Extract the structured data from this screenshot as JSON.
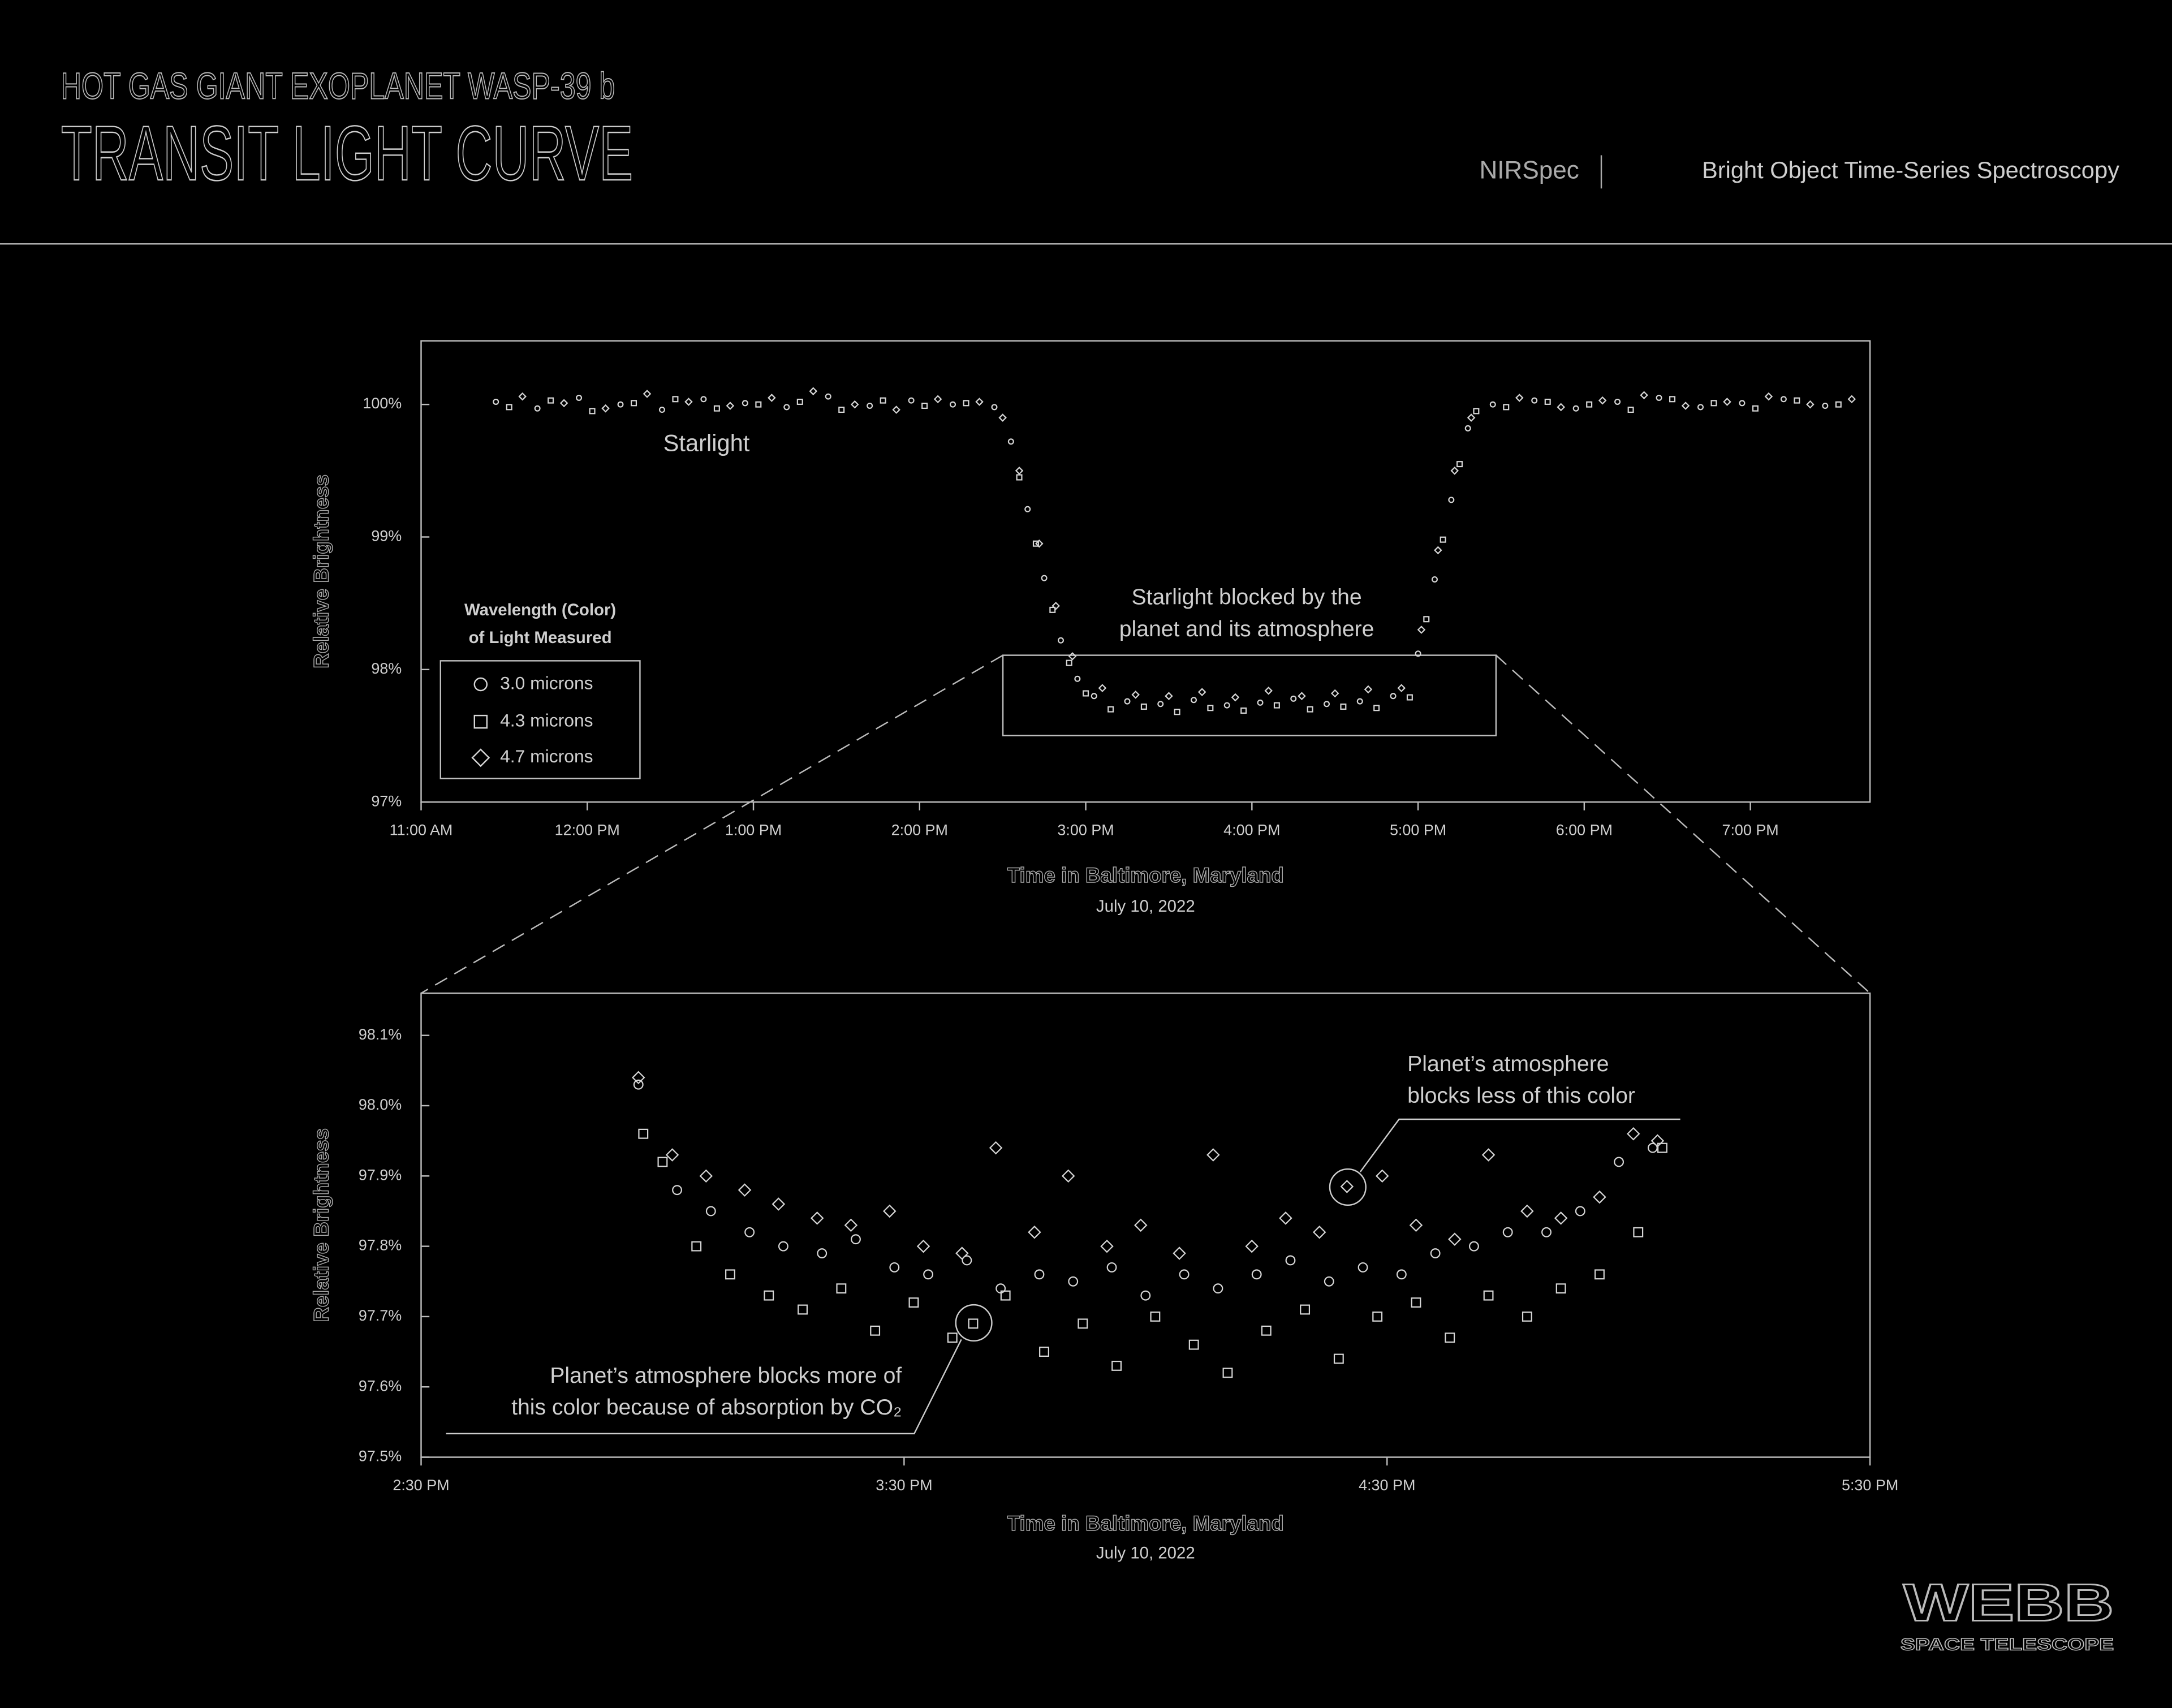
{
  "header": {
    "subtitle": "HOT GAS GIANT EXOPLANET WASP-39 b",
    "title": "TRANSIT LIGHT CURVE",
    "instrument": "NIRSpec",
    "mode": "Bright Object Time-Series Spectroscopy"
  },
  "logo": {
    "name": "WEBB",
    "tagline": "SPACE TELESCOPE"
  },
  "chart_data": [
    {
      "type": "scatter",
      "x_label": "Time in Baltimore, Maryland",
      "x_sublabel": "July 10, 2022",
      "y_label": "Relative Brightness",
      "xlim": [
        11,
        19.72
      ],
      "ylim": [
        97,
        100.48
      ],
      "xticks": [
        {
          "value": 11,
          "label": "11:00 AM"
        },
        {
          "value": 12,
          "label": "12:00 PM"
        },
        {
          "value": 13,
          "label": "1:00 PM"
        },
        {
          "value": 14,
          "label": "2:00 PM"
        },
        {
          "value": 15,
          "label": "3:00 PM"
        },
        {
          "value": 16,
          "label": "4:00 PM"
        },
        {
          "value": 17,
          "label": "5:00 PM"
        },
        {
          "value": 18,
          "label": "6:00 PM"
        },
        {
          "value": 19,
          "label": "7:00 PM"
        }
      ],
      "yticks": [
        {
          "value": 97,
          "label": "97%"
        },
        {
          "value": 98,
          "label": "98%"
        },
        {
          "value": 99,
          "label": "99%"
        },
        {
          "value": 100,
          "label": "100%"
        }
      ],
      "legend_title": [
        "Wavelength (Color)",
        "of Light Measured"
      ],
      "annotations": [
        {
          "lines": [
            "Starlight"
          ]
        },
        {
          "lines": [
            "Starlight blocked by the",
            "planet and its atmosphere"
          ]
        }
      ],
      "series": [
        {
          "name": "3.0 microns",
          "marker": "circle",
          "color": "#d6d6d6",
          "x": [
            11.45,
            11.7,
            11.95,
            12.2,
            12.45,
            12.7,
            12.95,
            13.2,
            13.45,
            13.7,
            13.95,
            14.2,
            14.45,
            14.55,
            14.65,
            14.75,
            14.85,
            14.95,
            15.05,
            15.25,
            15.45,
            15.65,
            15.85,
            16.05,
            16.25,
            16.45,
            16.65,
            16.85,
            17.0,
            17.1,
            17.2,
            17.3,
            17.45,
            17.7,
            17.95,
            18.2,
            18.45,
            18.7,
            18.95,
            19.2,
            19.45
          ],
          "values": [
            100.02,
            99.97,
            100.05,
            100.0,
            99.96,
            100.04,
            100.01,
            99.98,
            100.06,
            99.99,
            100.03,
            100.0,
            99.98,
            99.72,
            99.21,
            98.69,
            98.22,
            97.93,
            97.8,
            97.76,
            97.74,
            97.77,
            97.73,
            97.75,
            97.78,
            97.74,
            97.76,
            97.8,
            98.12,
            98.68,
            99.28,
            99.82,
            100.0,
            100.03,
            99.97,
            100.02,
            100.05,
            99.98,
            100.01,
            100.04,
            99.99
          ]
        },
        {
          "name": "4.3 microns",
          "marker": "square",
          "color": "#d6d6d6",
          "x": [
            11.53,
            11.78,
            12.03,
            12.28,
            12.53,
            12.78,
            13.03,
            13.28,
            13.53,
            13.78,
            14.03,
            14.28,
            14.6,
            14.7,
            14.8,
            14.9,
            15.0,
            15.15,
            15.35,
            15.55,
            15.75,
            15.95,
            16.15,
            16.35,
            16.55,
            16.75,
            16.95,
            17.05,
            17.15,
            17.25,
            17.35,
            17.53,
            17.78,
            18.03,
            18.28,
            18.53,
            18.78,
            19.03,
            19.28,
            19.53
          ],
          "values": [
            99.98,
            100.03,
            99.95,
            100.01,
            100.04,
            99.97,
            100.0,
            100.02,
            99.96,
            100.03,
            99.99,
            100.01,
            99.45,
            98.95,
            98.45,
            98.05,
            97.82,
            97.7,
            97.72,
            97.68,
            97.71,
            97.69,
            97.73,
            97.7,
            97.72,
            97.71,
            97.79,
            98.38,
            98.98,
            99.55,
            99.95,
            99.98,
            100.02,
            100.0,
            99.96,
            100.04,
            100.01,
            99.97,
            100.03,
            100.0
          ]
        },
        {
          "name": "4.7 microns",
          "marker": "diamond",
          "color": "#d6d6d6",
          "x": [
            11.61,
            11.86,
            12.11,
            12.36,
            12.61,
            12.86,
            13.11,
            13.36,
            13.61,
            13.86,
            14.11,
            14.36,
            14.5,
            14.6,
            14.72,
            14.82,
            14.92,
            15.1,
            15.3,
            15.5,
            15.7,
            15.9,
            16.1,
            16.3,
            16.5,
            16.7,
            16.9,
            17.02,
            17.12,
            17.22,
            17.32,
            17.61,
            17.86,
            18.11,
            18.36,
            18.61,
            18.86,
            19.11,
            19.36,
            19.61
          ],
          "values": [
            100.06,
            100.01,
            99.97,
            100.08,
            100.02,
            99.99,
            100.05,
            100.1,
            100.0,
            99.96,
            100.04,
            100.02,
            99.9,
            99.5,
            98.95,
            98.48,
            98.1,
            97.86,
            97.81,
            97.8,
            97.83,
            97.79,
            97.84,
            97.8,
            97.82,
            97.85,
            97.86,
            98.3,
            98.9,
            99.5,
            99.9,
            100.05,
            99.98,
            100.03,
            100.07,
            99.99,
            100.02,
            100.06,
            100.0,
            100.04
          ]
        }
      ]
    },
    {
      "type": "scatter",
      "x_label": "Time in Baltimore, Maryland",
      "x_sublabel": "July 10, 2022",
      "y_label": "Relative Brightness",
      "xlim": [
        14.5,
        17.5
      ],
      "ylim": [
        97.5,
        98.16
      ],
      "xticks": [
        {
          "value": 14.5,
          "label": "2:30 PM"
        },
        {
          "value": 15.5,
          "label": "3:30 PM"
        },
        {
          "value": 16.5,
          "label": "4:30 PM"
        },
        {
          "value": 17.5,
          "label": "5:30 PM"
        }
      ],
      "yticks": [
        {
          "value": 97.5,
          "label": "97.5%"
        },
        {
          "value": 97.6,
          "label": "97.6%"
        },
        {
          "value": 97.7,
          "label": "97.7%"
        },
        {
          "value": 97.8,
          "label": "97.8%"
        },
        {
          "value": 97.9,
          "label": "97.9%"
        },
        {
          "value": 98.0,
          "label": "98.0%"
        },
        {
          "value": 98.1,
          "label": "98.1%"
        }
      ],
      "annotations": [
        {
          "lines": [
            "Planet’s atmosphere",
            "blocks less of this color"
          ]
        },
        {
          "lines": [
            "Planet’s atmosphere blocks more of",
            "this color because of absorption by CO₂"
          ]
        }
      ],
      "series": [
        {
          "name": "3.0 microns",
          "marker": "circle",
          "color": "#d6d6d6",
          "x": [
            14.95,
            15.03,
            15.1,
            15.18,
            15.25,
            15.33,
            15.4,
            15.48,
            15.55,
            15.63,
            15.7,
            15.78,
            15.85,
            15.93,
            16.0,
            16.08,
            16.15,
            16.23,
            16.3,
            16.38,
            16.45,
            16.53,
            16.6,
            16.68,
            16.75,
            16.83,
            16.9,
            16.98,
            17.05
          ],
          "values": [
            98.03,
            97.88,
            97.85,
            97.82,
            97.8,
            97.79,
            97.81,
            97.77,
            97.76,
            97.78,
            97.74,
            97.76,
            97.75,
            97.77,
            97.73,
            97.76,
            97.74,
            97.76,
            97.78,
            97.75,
            97.77,
            97.76,
            97.79,
            97.8,
            97.82,
            97.82,
            97.85,
            97.92,
            97.94
          ]
        },
        {
          "name": "4.3 microns",
          "marker": "square",
          "color": "#d6d6d6",
          "x": [
            14.96,
            15.0,
            15.07,
            15.14,
            15.22,
            15.29,
            15.37,
            15.44,
            15.52,
            15.6,
            15.643,
            15.71,
            15.79,
            15.87,
            15.94,
            16.02,
            16.1,
            16.17,
            16.25,
            16.33,
            16.4,
            16.48,
            16.56,
            16.63,
            16.71,
            16.79,
            16.86,
            16.94,
            17.02,
            17.07
          ],
          "values": [
            97.96,
            97.92,
            97.8,
            97.76,
            97.73,
            97.71,
            97.74,
            97.68,
            97.72,
            97.67,
            97.69,
            97.73,
            97.65,
            97.69,
            97.63,
            97.7,
            97.66,
            97.62,
            97.68,
            97.71,
            97.64,
            97.7,
            97.72,
            97.67,
            97.73,
            97.7,
            97.74,
            97.76,
            97.82,
            97.94
          ]
        },
        {
          "name": "4.7 microns",
          "marker": "diamond",
          "color": "#d6d6d6",
          "x": [
            14.95,
            15.02,
            15.09,
            15.17,
            15.24,
            15.32,
            15.39,
            15.47,
            15.54,
            15.62,
            15.69,
            15.77,
            15.84,
            15.92,
            15.99,
            16.07,
            16.14,
            16.22,
            16.29,
            16.36,
            16.417,
            16.49,
            16.56,
            16.64,
            16.71,
            16.79,
            16.86,
            16.94,
            17.01,
            17.06
          ],
          "values": [
            98.04,
            97.93,
            97.9,
            97.88,
            97.86,
            97.84,
            97.83,
            97.85,
            97.8,
            97.79,
            97.94,
            97.82,
            97.9,
            97.8,
            97.83,
            97.79,
            97.93,
            97.8,
            97.84,
            97.82,
            97.885,
            97.9,
            97.83,
            97.81,
            97.93,
            97.85,
            97.84,
            97.87,
            97.96,
            97.95
          ]
        }
      ]
    }
  ]
}
